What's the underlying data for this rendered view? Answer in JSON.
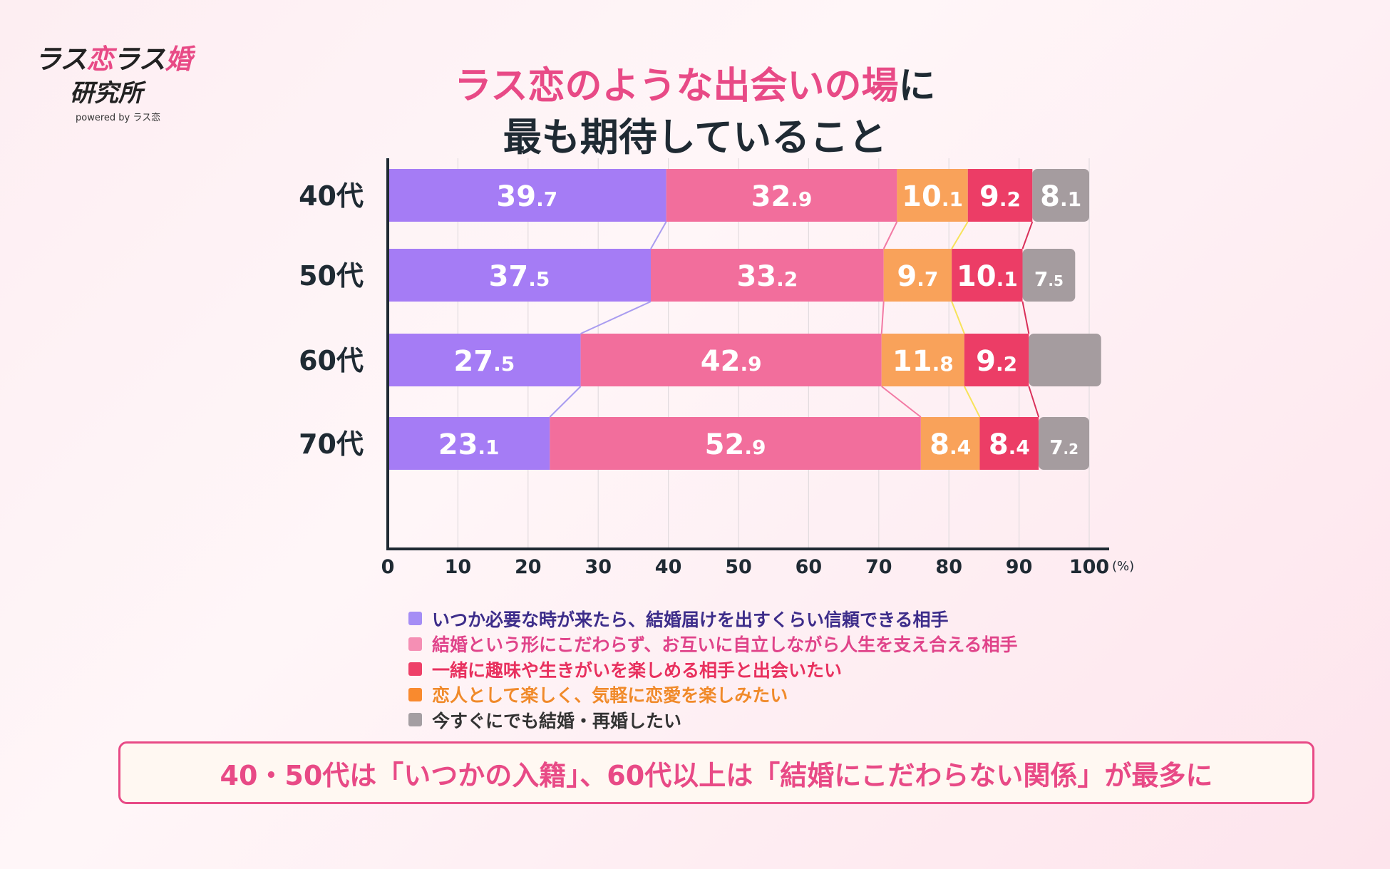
{
  "logo": {
    "part1": "ラス",
    "part2": "恋",
    "part3": "ラス",
    "part4": "婚",
    "line2": "研究所",
    "line3": "powered by ラス恋"
  },
  "title": {
    "line1_highlight": "ラス恋のような出会いの場",
    "line1_tail": "に",
    "line2": "最も期待していること"
  },
  "chart_data": {
    "type": "bar",
    "orientation": "horizontal",
    "stacked": true,
    "categories": [
      "40代",
      "50代",
      "60代",
      "70代"
    ],
    "xlim": [
      0,
      100
    ],
    "xticks": [
      "0",
      "10",
      "20",
      "30",
      "40",
      "50",
      "60",
      "70",
      "80",
      "90",
      "100"
    ],
    "unit": "(%)",
    "grid": true,
    "series": [
      {
        "name": "いつか必要な時が来たら、結婚届けを出すくらい信頼できる相手",
        "color": "#a57cf5",
        "values": [
          39.7,
          37.5,
          27.5,
          23.1
        ],
        "labels": [
          "39.7",
          "37.5",
          "27.5",
          "23.1"
        ]
      },
      {
        "name": "結婚という形にこだわらず、お互いに自立しながら人生を支え合える相手",
        "color": "#f26e9c",
        "values": [
          32.9,
          33.2,
          42.9,
          52.9
        ],
        "labels": [
          "32.9",
          "33.2",
          "42.9",
          "52.9"
        ]
      },
      {
        "name": "恋人として楽しく、気軽に恋愛を楽しみたい",
        "color": "#f9a25a",
        "values": [
          10.1,
          9.7,
          11.8,
          8.4
        ],
        "labels": [
          "10.1",
          "9.7",
          "11.8",
          "8.4"
        ]
      },
      {
        "name": "一緒に趣味や生きがいを楽しめる相手と出会いたい",
        "color": "#ec3d66",
        "values": [
          9.2,
          10.1,
          9.2,
          8.4
        ],
        "labels": [
          "9.2",
          "10.1",
          "9.2",
          "8.4"
        ]
      },
      {
        "name": "今すぐにでも結婚・再婚したい",
        "color": "#a59c9f",
        "values": [
          8.1,
          7.5,
          10.3,
          7.2
        ],
        "labels": [
          "8.1",
          "7.5",
          "",
          "7.2"
        ]
      }
    ],
    "legend_order": [
      0,
      1,
      3,
      2,
      4
    ],
    "legend_colors": [
      "#a58df5",
      "#f58fb4",
      "#ee4068",
      "#f98a2e",
      "#a49ea2"
    ],
    "legend_text_colors": [
      "#3d2d8a",
      "#e0448a",
      "#e8305e",
      "#f08a2a",
      "#333333"
    ],
    "legend_placement": "bottom"
  },
  "callout": "40・50代は「いつかの入籍」、60代以上は「結婚にこだわらない関係」が最多に"
}
